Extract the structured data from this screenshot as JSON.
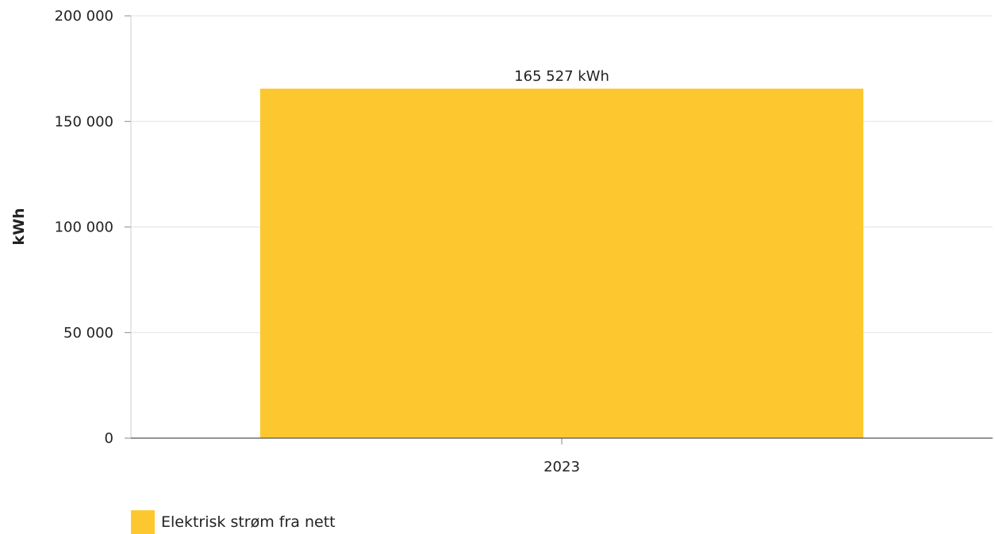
{
  "chart_data": {
    "type": "bar",
    "categories": [
      "2023"
    ],
    "series": [
      {
        "name": "Elektrisk strøm fra nett",
        "values": [
          165527
        ],
        "color": "#fdc82f"
      }
    ],
    "data_labels": [
      "165 527 kWh"
    ],
    "ylabel": "kWh",
    "ylim": [
      0,
      200000
    ],
    "yticks": [
      0,
      50000,
      100000,
      150000,
      200000
    ],
    "ytick_labels": [
      "0",
      "50 000",
      "100 000",
      "150 000",
      "200 000"
    ],
    "grid": true,
    "legend_position": "bottom-left"
  }
}
